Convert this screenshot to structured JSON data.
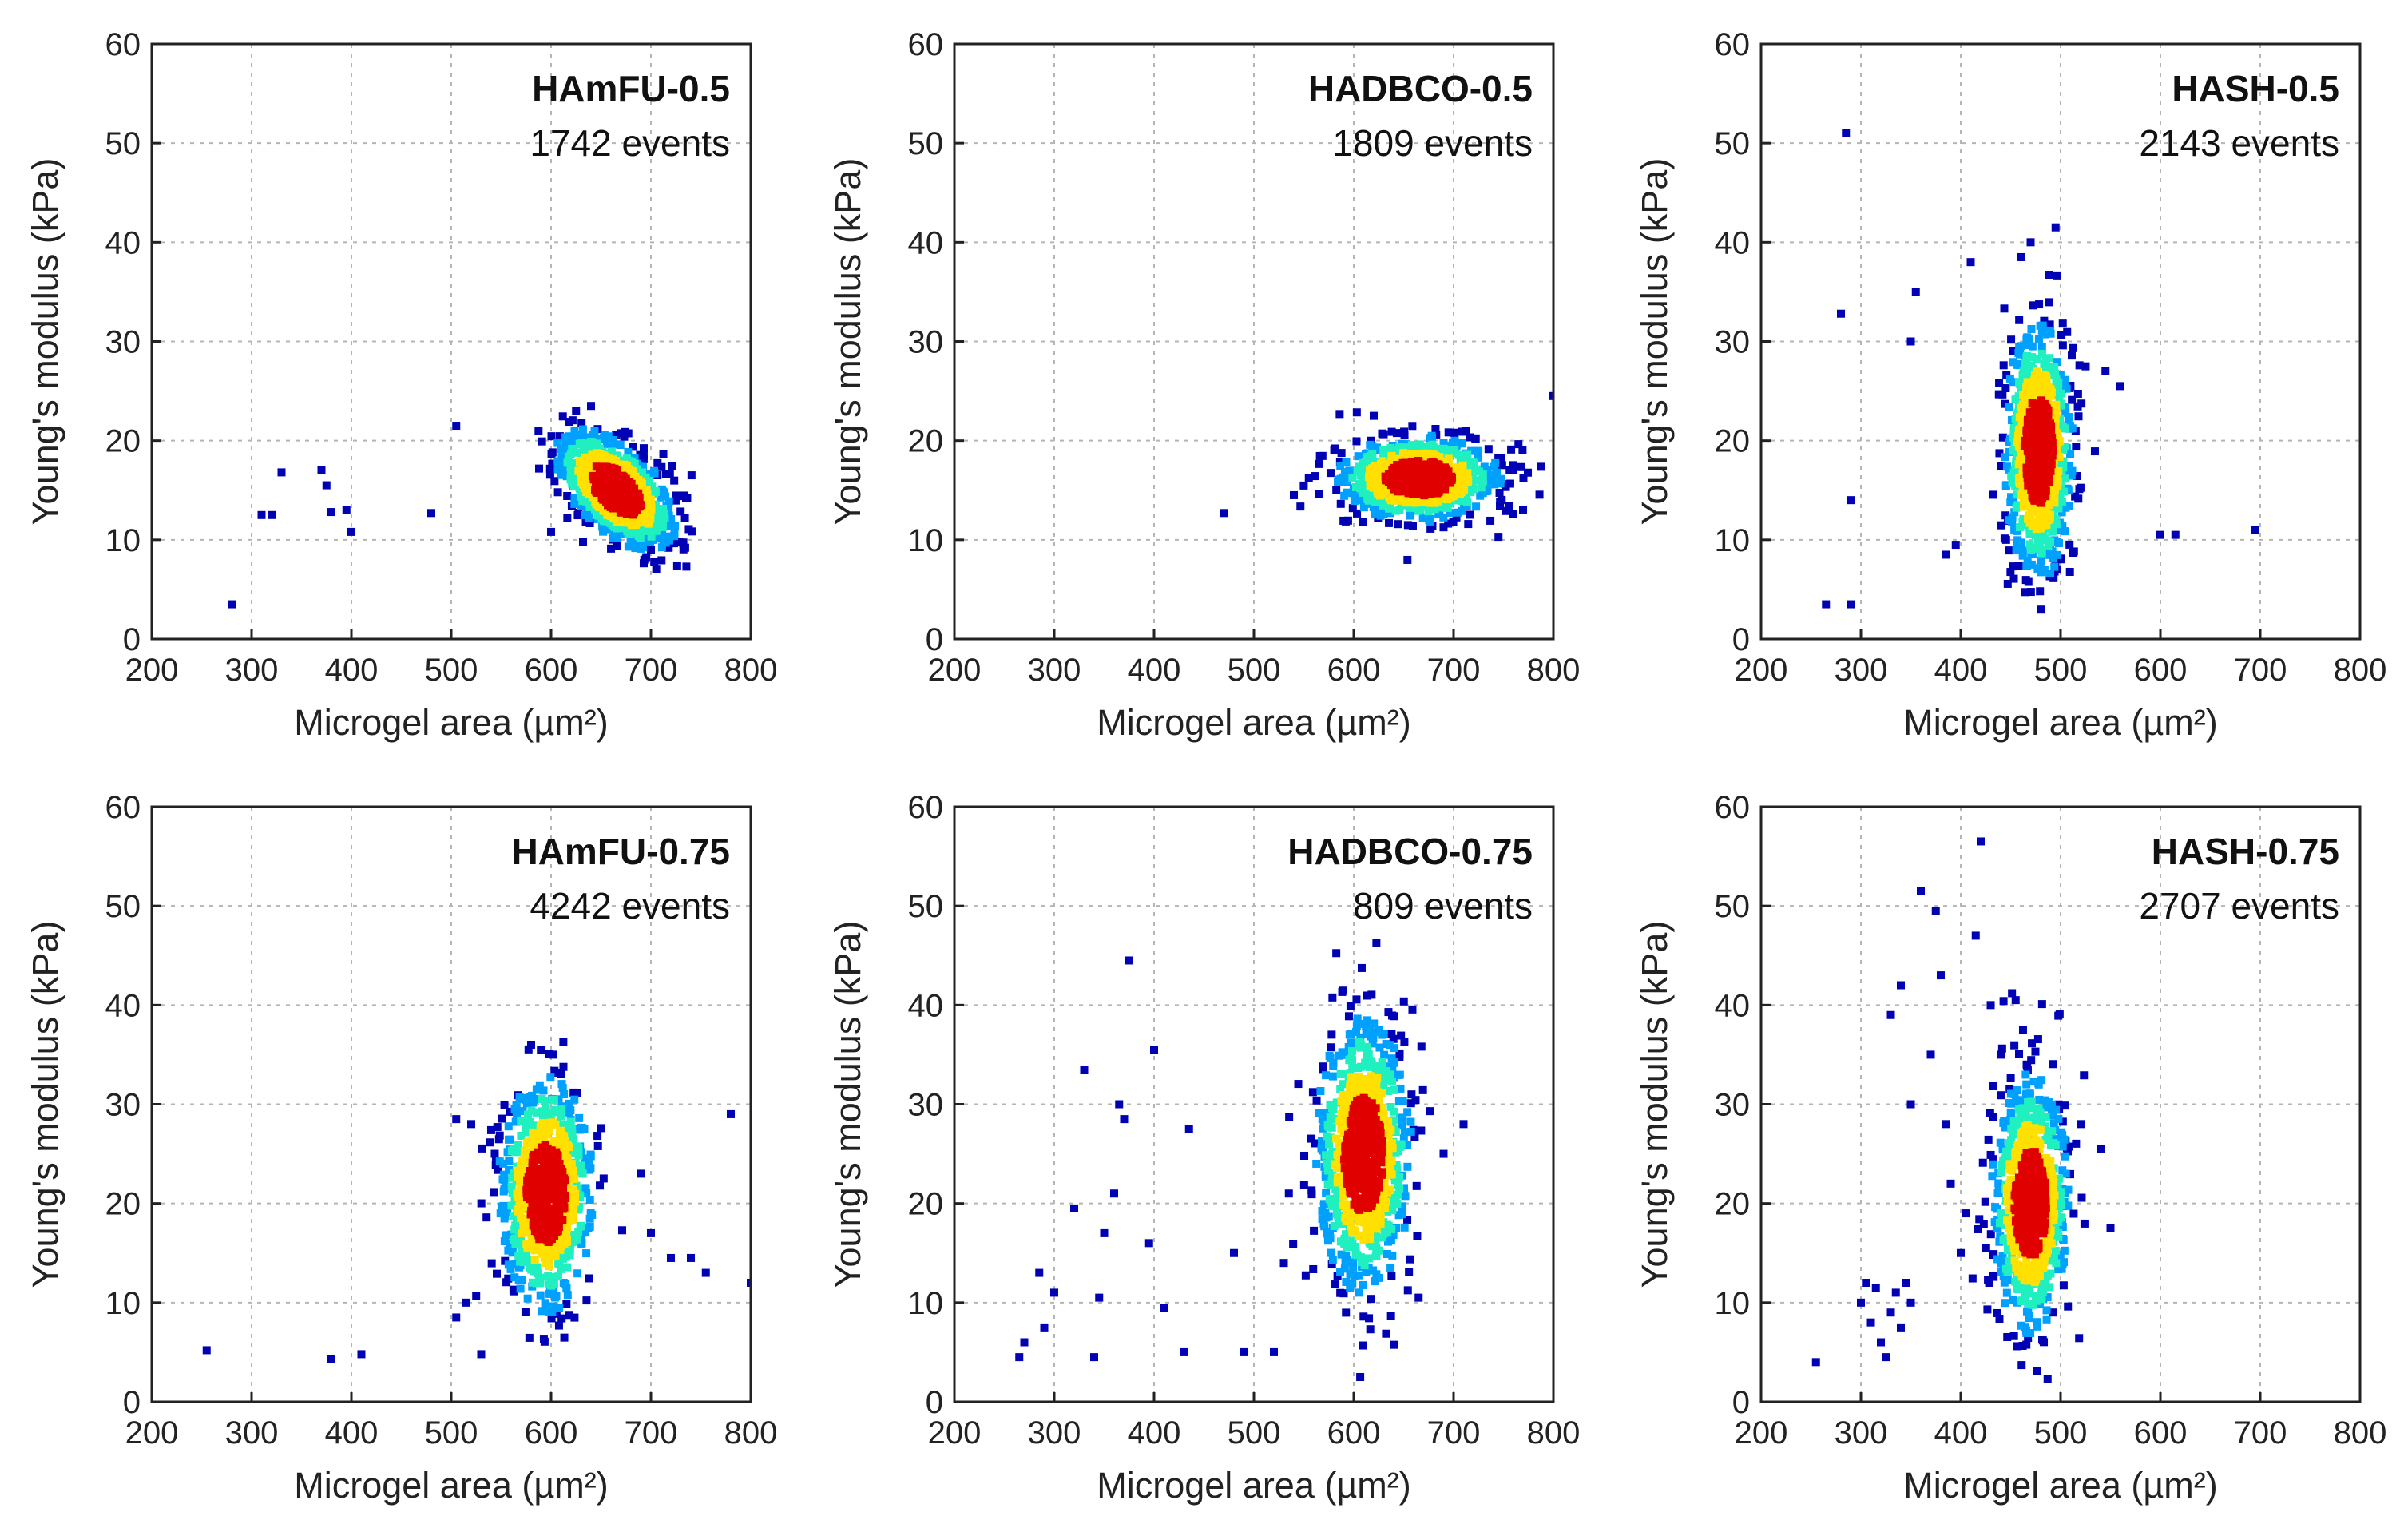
{
  "figure": {
    "xlabel": "Microgel area (µm²)",
    "ylabel": "Young's modulus (kPa)",
    "xticks": [
      "200",
      "300",
      "400",
      "500",
      "600",
      "700",
      "800"
    ],
    "yticks": [
      "0",
      "10",
      "20",
      "30",
      "40",
      "50",
      "60"
    ]
  },
  "colors": {
    "low": "#0000b4",
    "mid_low": "#00a0ff",
    "mid": "#20f0c0",
    "mid_high": "#ffe000",
    "high": "#e00000"
  },
  "chart_data": [
    {
      "type": "scatter",
      "title": "HAmFU-0.5",
      "subtitle": "1742 events",
      "xlabel": "Microgel area (µm²)",
      "ylabel": "Young's modulus (kPa)",
      "xlim": [
        200,
        800
      ],
      "ylim": [
        0,
        60
      ],
      "grid": true,
      "cluster": {
        "cx": 665,
        "cy": 15,
        "sx": 28,
        "sy": 2.8,
        "rho": -0.55,
        "sparse": false
      },
      "outliers": [
        [
          280,
          3.5
        ],
        [
          310,
          12.5
        ],
        [
          320,
          12.5
        ],
        [
          330,
          16.8
        ],
        [
          370,
          17
        ],
        [
          375,
          15.5
        ],
        [
          380,
          12.8
        ],
        [
          395,
          13
        ],
        [
          400,
          10.8
        ],
        [
          480,
          12.7
        ],
        [
          505,
          21.5
        ],
        [
          600,
          10.8
        ],
        [
          625,
          23
        ],
        [
          640,
          23.5
        ],
        [
          700,
          9
        ]
      ]
    },
    {
      "type": "scatter",
      "title": "HADBCO-0.5",
      "subtitle": "1809 events",
      "xlabel": "Microgel area (µm²)",
      "ylabel": "Young's modulus (kPa)",
      "xlim": [
        200,
        800
      ],
      "ylim": [
        0,
        60
      ],
      "grid": true,
      "cluster": {
        "cx": 665,
        "cy": 16.2,
        "sx": 38,
        "sy": 2.0,
        "rho": 0,
        "sparse": false
      },
      "outliers": [
        [
          470,
          12.7
        ],
        [
          540,
          14.5
        ],
        [
          555,
          16.2
        ],
        [
          745,
          10.3
        ],
        [
          760,
          17
        ],
        [
          800,
          24.5
        ],
        [
          620,
          22.5
        ],
        [
          700,
          20.8
        ]
      ]
    },
    {
      "type": "scatter",
      "title": "HASH-0.5",
      "subtitle": "2143 events",
      "xlabel": "Microgel area (µm²)",
      "ylabel": "Young's modulus (kPa)",
      "xlim": [
        200,
        800
      ],
      "ylim": [
        0,
        60
      ],
      "grid": true,
      "cluster": {
        "cx": 478,
        "cy": 19,
        "sx": 16,
        "sy": 6,
        "rho": 0,
        "sparse": false
      },
      "outliers": [
        [
          265,
          3.5
        ],
        [
          290,
          3.5
        ],
        [
          280,
          32.8
        ],
        [
          285,
          51
        ],
        [
          290,
          14
        ],
        [
          350,
          30
        ],
        [
          355,
          35
        ],
        [
          410,
          38
        ],
        [
          460,
          38.5
        ],
        [
          470,
          40
        ],
        [
          495,
          41.5
        ],
        [
          545,
          27
        ],
        [
          560,
          25.5
        ],
        [
          600,
          10.5
        ],
        [
          615,
          10.5
        ],
        [
          695,
          11
        ],
        [
          385,
          8.5
        ],
        [
          395,
          9.5
        ]
      ]
    },
    {
      "type": "scatter",
      "title": "HAmFU-0.75",
      "subtitle": "4242 events",
      "xlabel": "Microgel area (µm²)",
      "ylabel": "Young's modulus (kPa)",
      "xlim": [
        200,
        800
      ],
      "ylim": [
        0,
        60
      ],
      "grid": true,
      "cluster": {
        "cx": 595,
        "cy": 21,
        "sx": 22,
        "sy": 5.5,
        "rho": 0,
        "sparse": false
      },
      "outliers": [
        [
          255,
          5.2
        ],
        [
          380,
          4.3
        ],
        [
          410,
          4.8
        ],
        [
          530,
          4.8
        ],
        [
          505,
          8.5
        ],
        [
          515,
          10
        ],
        [
          505,
          28.5
        ],
        [
          520,
          28
        ],
        [
          580,
          36
        ],
        [
          690,
          23
        ],
        [
          700,
          17
        ],
        [
          720,
          14.5
        ],
        [
          740,
          14.5
        ],
        [
          755,
          13
        ],
        [
          780,
          29
        ],
        [
          800,
          12
        ]
      ]
    },
    {
      "type": "scatter",
      "title": "HADBCO-0.75",
      "subtitle": "809 events",
      "xlabel": "Microgel area (µm²)",
      "ylabel": "Young's modulus (kPa)",
      "xlim": [
        200,
        800
      ],
      "ylim": [
        0,
        60
      ],
      "grid": true,
      "cluster": {
        "cx": 610,
        "cy": 25,
        "sx": 22,
        "sy": 6.5,
        "rho": 0,
        "sparse": false
      },
      "outliers": [
        [
          265,
          4.5
        ],
        [
          270,
          6
        ],
        [
          285,
          13
        ],
        [
          290,
          7.5
        ],
        [
          300,
          11
        ],
        [
          320,
          19.5
        ],
        [
          330,
          33.5
        ],
        [
          340,
          4.5
        ],
        [
          345,
          10.5
        ],
        [
          350,
          17
        ],
        [
          360,
          21
        ],
        [
          365,
          30
        ],
        [
          370,
          28.5
        ],
        [
          375,
          44.5
        ],
        [
          395,
          16
        ],
        [
          400,
          35.5
        ],
        [
          410,
          9.5
        ],
        [
          430,
          5
        ],
        [
          435,
          27.5
        ],
        [
          480,
          15
        ],
        [
          490,
          5
        ],
        [
          520,
          5
        ],
        [
          530,
          14
        ],
        [
          535,
          21
        ],
        [
          665,
          10.5
        ],
        [
          690,
          25
        ],
        [
          710,
          28
        ]
      ]
    },
    {
      "type": "scatter",
      "title": "HASH-0.75",
      "subtitle": "2707 events",
      "xlabel": "Microgel area (µm²)",
      "ylabel": "Young's modulus (kPa)",
      "xlim": [
        200,
        800
      ],
      "ylim": [
        0,
        60
      ],
      "grid": true,
      "cluster": {
        "cx": 470,
        "cy": 20,
        "sx": 18,
        "sy": 6,
        "rho": 0,
        "sparse": false
      },
      "outliers": [
        [
          255,
          4
        ],
        [
          300,
          10
        ],
        [
          305,
          12
        ],
        [
          310,
          8
        ],
        [
          315,
          11.5
        ],
        [
          320,
          6
        ],
        [
          325,
          4.5
        ],
        [
          330,
          9
        ],
        [
          335,
          11
        ],
        [
          340,
          7.5
        ],
        [
          345,
          12
        ],
        [
          350,
          10
        ],
        [
          330,
          39
        ],
        [
          340,
          42
        ],
        [
          350,
          30
        ],
        [
          360,
          51.5
        ],
        [
          370,
          35
        ],
        [
          375,
          49.5
        ],
        [
          380,
          43
        ],
        [
          385,
          28
        ],
        [
          390,
          22
        ],
        [
          400,
          15
        ],
        [
          405,
          19
        ],
        [
          415,
          47
        ],
        [
          420,
          56.5
        ],
        [
          430,
          40
        ],
        [
          440,
          35
        ],
        [
          455,
          40.5
        ],
        [
          540,
          25.5
        ],
        [
          550,
          17.5
        ],
        [
          520,
          28
        ]
      ]
    }
  ]
}
